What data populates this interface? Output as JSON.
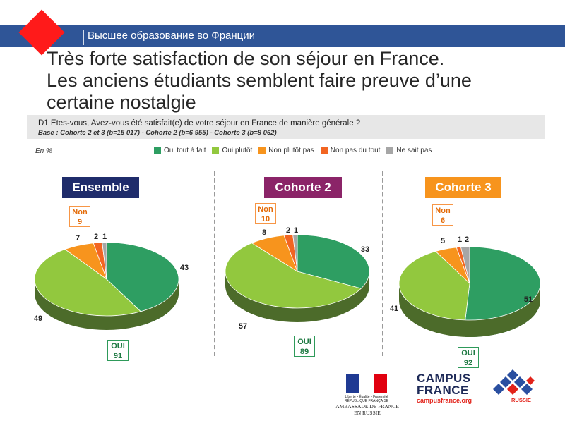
{
  "header": {
    "text": "Высшее образование во Франции",
    "accent": "#ff1a1a",
    "bar_color": "#2f5597"
  },
  "title_lines": [
    "Très forte satisfaction de son séjour en France.",
    "Les anciens étudiants semblent faire preuve d’une",
    "certaine nostalgie"
  ],
  "question": {
    "text": "D1 Etes-vous, Avez-vous été satisfait(e) de votre séjour en France de manière générale ?",
    "base": "Base : Cohorte 2 et 3 (b=15 017) - Cohorte 2 (b=6 955) - Cohorte 3 (b=8 062)"
  },
  "unit_label": "En %",
  "legend": [
    {
      "label": "Oui tout à fait",
      "color": "#2e9e62"
    },
    {
      "label": "Oui plutôt",
      "color": "#92c83e"
    },
    {
      "label": "Non plutôt pas",
      "color": "#f7941d"
    },
    {
      "label": "Non pas du tout",
      "color": "#f26522"
    },
    {
      "label": "Ne sait pas",
      "color": "#a6a6a6"
    }
  ],
  "chart_data": [
    {
      "type": "pie",
      "title": "Ensemble",
      "header_color": "#1f2c6b",
      "categories": [
        "Oui tout à fait",
        "Oui plutôt",
        "Non plutôt pas",
        "Non pas du tout",
        "Ne sait pas"
      ],
      "values": [
        43,
        49,
        7,
        2,
        1
      ],
      "non_label": "Non",
      "non_value": "9",
      "oui_label": "OUI",
      "oui_value": "91"
    },
    {
      "type": "pie",
      "title": "Cohorte 2",
      "header_color": "#8b2468",
      "categories": [
        "Oui tout à fait",
        "Oui plutôt",
        "Non plutôt pas",
        "Non pas du tout",
        "Ne sait pas"
      ],
      "values": [
        33,
        57,
        8,
        2,
        1
      ],
      "non_label": "Non",
      "non_value": "10",
      "oui_label": "OUI",
      "oui_value": "89"
    },
    {
      "type": "pie",
      "title": "Cohorte 3",
      "header_color": "#f7941d",
      "categories": [
        "Oui tout à fait",
        "Oui plutôt",
        "Non plutôt pas",
        "Non pas du tout",
        "Ne sait pas"
      ],
      "values": [
        51,
        41,
        5,
        1,
        2
      ],
      "non_label": "Non",
      "non_value": "6",
      "oui_label": "OUI",
      "oui_value": "92"
    }
  ],
  "footer": {
    "rf_text": "Liberté • Égalité • Fraternité RÉPUBLIQUE FRANÇAISE",
    "embassy_line1": "AMBASSADE DE FRANCE",
    "embassy_line2": "EN RUSSIE",
    "cf_line1": "CAMPUS",
    "cf_line2": "FRANCE",
    "cf_url": "campusfrance.org",
    "cf_russie": "RUSSIE"
  }
}
